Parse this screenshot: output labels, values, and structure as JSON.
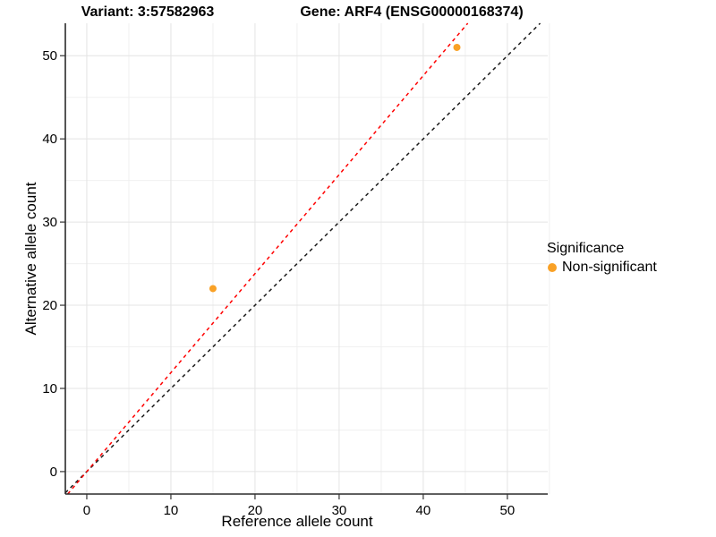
{
  "titles": {
    "variant": "Variant: 3:57582963",
    "gene": "Gene: ARF4 (ENSG00000168374)"
  },
  "axes": {
    "x_label": "Reference allele count",
    "y_label": "Alternative allele count"
  },
  "legend": {
    "title": "Significance",
    "items": [
      {
        "label": "Non-significant",
        "color": "#F9A126"
      }
    ]
  },
  "colors": {
    "background": "#FFFFFF",
    "grid_major": "#E4E4E4",
    "grid_minor": "#F0F0F0",
    "axis_line": "#2B2B2B",
    "tick_mark": "#333333",
    "identity_line": "#1A1A1A",
    "ratio_line": "#FF0000",
    "point": "#F9A126"
  },
  "chart_data": {
    "type": "scatter",
    "title": "Variant: 3:57582963 | Gene: ARF4 (ENSG00000168374)",
    "xlabel": "Reference allele count",
    "ylabel": "Alternative allele count",
    "xlim": [
      -2.55,
      54.8
    ],
    "ylim": [
      -2.7,
      53.9
    ],
    "x_ticks": [
      0,
      10,
      20,
      30,
      40,
      50
    ],
    "y_ticks": [
      0,
      10,
      20,
      30,
      40,
      50
    ],
    "x_minor_ticks": [
      5,
      15,
      25,
      35,
      45,
      55
    ],
    "y_minor_ticks": [
      5,
      15,
      25,
      35,
      45
    ],
    "grid": true,
    "legend_position": "right",
    "series": [
      {
        "name": "Non-significant",
        "color": "#F9A126",
        "points": [
          {
            "x": 15,
            "y": 22
          },
          {
            "x": 44,
            "y": 51
          }
        ]
      }
    ],
    "lines": [
      {
        "name": "identity",
        "style": "dashed",
        "color": "#1A1A1A",
        "slope": 1.0,
        "intercept": 0
      },
      {
        "name": "allele-ratio",
        "style": "dashed",
        "color": "#FF0000",
        "slope": 1.19,
        "intercept": 0
      }
    ]
  }
}
